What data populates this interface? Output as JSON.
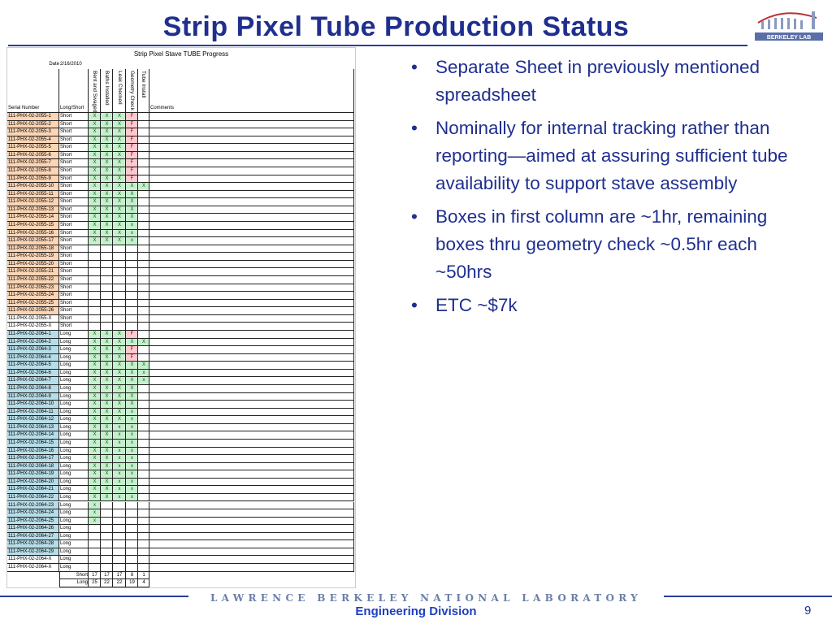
{
  "header": {
    "title": "Strip Pixel Tube Production Status",
    "logo": "BERKELEY LAB"
  },
  "sheet": {
    "title": "Strip Pixel Stave TUBE Progress",
    "date_label": "Date",
    "date": "2/16/2010",
    "columns": [
      "Serial Number",
      "Long/Short",
      "Bent and Swaged",
      "Baths Installed",
      "Leak Checked",
      "Geometry Check",
      "Tube Install",
      "Comments"
    ],
    "groups": [
      {
        "fill": "#fbd5b5",
        "rows": [
          [
            "111-PHX-02-2055-1",
            "Short",
            [
              "X",
              "X",
              "X",
              "F",
              null
            ]
          ],
          [
            "111-PHX-02-2055-2",
            "Short",
            [
              "X",
              "X",
              "X",
              "F",
              null
            ]
          ],
          [
            "111-PHX-02-2055-3",
            "Short",
            [
              "X",
              "X",
              "X",
              "F",
              null
            ]
          ],
          [
            "111-PHX-02-2055-4",
            "Short",
            [
              "X",
              "X",
              "X",
              "F",
              null
            ]
          ],
          [
            "111-PHX-02-2055-5",
            "Short",
            [
              "X",
              "X",
              "X",
              "F",
              null
            ]
          ],
          [
            "111-PHX-02-2055-6",
            "Short",
            [
              "X",
              "X",
              "X",
              "F",
              null
            ]
          ],
          [
            "111-PHX-02-2055-7",
            "Short",
            [
              "X",
              "X",
              "X",
              "F",
              null
            ]
          ],
          [
            "111-PHX-02-2055-8",
            "Short",
            [
              "X",
              "X",
              "X",
              "F",
              null
            ]
          ],
          [
            "111-PHX-02-2055-9",
            "Short",
            [
              "X",
              "X",
              "X",
              "F",
              null
            ]
          ],
          [
            "111-PHX-02-2055-10",
            "Short",
            [
              "X",
              "X",
              "X",
              "X",
              "X"
            ]
          ],
          [
            "111-PHX-02-2055-11",
            "Short",
            [
              "X",
              "X",
              "X",
              "X",
              null
            ]
          ],
          [
            "111-PHX-02-2055-12",
            "Short",
            [
              "X",
              "X",
              "X",
              "X",
              null
            ]
          ],
          [
            "111-PHX-02-2055-13",
            "Short",
            [
              "X",
              "X",
              "X",
              "X",
              null
            ]
          ],
          [
            "111-PHX-02-2055-14",
            "Short",
            [
              "X",
              "X",
              "X",
              "X",
              null
            ]
          ],
          [
            "111-PHX-02-2055-15",
            "Short",
            [
              "X",
              "X",
              "X",
              "x",
              null
            ]
          ],
          [
            "111-PHX-02-2055-16",
            "Short",
            [
              "X",
              "X",
              "X",
              "x",
              null
            ]
          ],
          [
            "111-PHX-02-2055-17",
            "Short",
            [
              "X",
              "X",
              "X",
              "x",
              null
            ]
          ],
          [
            "111-PHX-02-2055-18",
            "Short",
            [
              null,
              null,
              null,
              null,
              null
            ]
          ],
          [
            "111-PHX-02-2055-19",
            "Short",
            [
              null,
              null,
              null,
              null,
              null
            ]
          ],
          [
            "111-PHX-02-2055-20",
            "Short",
            [
              null,
              null,
              null,
              null,
              null
            ]
          ],
          [
            "111-PHX-02-2055-21",
            "Short",
            [
              null,
              null,
              null,
              null,
              null
            ]
          ],
          [
            "111-PHX-02-2055-22",
            "Short",
            [
              null,
              null,
              null,
              null,
              null
            ]
          ],
          [
            "111-PHX-02-2055-23",
            "Short",
            [
              null,
              null,
              null,
              null,
              null
            ]
          ],
          [
            "111-PHX-02-2055-24",
            "Short",
            [
              null,
              null,
              null,
              null,
              null
            ]
          ],
          [
            "111-PHX-02-2055-25",
            "Short",
            [
              null,
              null,
              null,
              null,
              null
            ]
          ],
          [
            "111-PHX-02-2055-26",
            "Short",
            [
              null,
              null,
              null,
              null,
              null
            ]
          ]
        ]
      },
      {
        "fill": null,
        "rows": [
          [
            "111-PHX-02-2055-X",
            "Short",
            [
              null,
              null,
              null,
              null,
              null
            ]
          ],
          [
            "111-PHX-02-2055-X",
            "Short",
            [
              null,
              null,
              null,
              null,
              null
            ]
          ]
        ]
      },
      {
        "fill": "#b7dde8",
        "rows": [
          [
            "111-PHX-02-2064-1",
            "Long",
            [
              "X",
              "X",
              "X",
              "F",
              null
            ]
          ],
          [
            "111-PHX-02-2064-2",
            "Long",
            [
              "X",
              "X",
              "X",
              "X",
              "X"
            ]
          ],
          [
            "111-PHX-02-2064-3",
            "Long",
            [
              "X",
              "X",
              "X",
              "F",
              null
            ]
          ],
          [
            "111-PHX-02-2064-4",
            "Long",
            [
              "X",
              "X",
              "X",
              "F",
              null
            ]
          ],
          [
            "111-PHX-02-2064-5",
            "Long",
            [
              "X",
              "X",
              "X",
              "X",
              "X"
            ]
          ],
          [
            "111-PHX-02-2064-6",
            "Long",
            [
              "X",
              "X",
              "X",
              "X",
              "x"
            ]
          ],
          [
            "111-PHX-02-2064-7",
            "Long",
            [
              "X",
              "X",
              "X",
              "X",
              "x"
            ]
          ],
          [
            "111-PHX-02-2064-8",
            "Long",
            [
              "X",
              "X",
              "X",
              "X",
              null
            ]
          ],
          [
            "111-PHX-02-2064-9",
            "Long",
            [
              "X",
              "X",
              "X",
              "X",
              null
            ]
          ],
          [
            "111-PHX-02-2064-10",
            "Long",
            [
              "X",
              "X",
              "X",
              "X",
              null
            ]
          ],
          [
            "111-PHX-02-2064-11",
            "Long",
            [
              "X",
              "X",
              "X",
              "x",
              null
            ]
          ],
          [
            "111-PHX-02-2064-12",
            "Long",
            [
              "X",
              "X",
              "X",
              "x",
              null
            ]
          ],
          [
            "111-PHX-02-2064-13",
            "Long",
            [
              "X",
              "X",
              "x",
              "x",
              null
            ]
          ],
          [
            "111-PHX-02-2064-14",
            "Long",
            [
              "X",
              "X",
              "x",
              "x",
              null
            ]
          ],
          [
            "111-PHX-02-2064-15",
            "Long",
            [
              "X",
              "X",
              "x",
              "x",
              null
            ]
          ],
          [
            "111-PHX-02-2064-16",
            "Long",
            [
              "X",
              "X",
              "x",
              "x",
              null
            ]
          ],
          [
            "111-PHX-02-2064-17",
            "Long",
            [
              "X",
              "X",
              "x",
              "x",
              null
            ]
          ],
          [
            "111-PHX-02-2064-18",
            "Long",
            [
              "X",
              "X",
              "x",
              "x",
              null
            ]
          ],
          [
            "111-PHX-02-2064-19",
            "Long",
            [
              "X",
              "X",
              "x",
              "x",
              null
            ]
          ],
          [
            "111-PHX-02-2064-20",
            "Long",
            [
              "X",
              "X",
              "x",
              "x",
              null
            ]
          ],
          [
            "111-PHX-02-2064-21",
            "Long",
            [
              "X",
              "X",
              "x",
              "x",
              null
            ]
          ],
          [
            "111-PHX-02-2064-22",
            "Long",
            [
              "X",
              "X",
              "x",
              "x",
              null
            ]
          ],
          [
            "111-PHX-02-2064-23",
            "Long",
            [
              "x",
              null,
              null,
              null,
              null
            ]
          ],
          [
            "111-PHX-02-2064-24",
            "Long",
            [
              "x",
              null,
              null,
              null,
              null
            ]
          ],
          [
            "111-PHX-02-2064-25",
            "Long",
            [
              "x",
              null,
              null,
              null,
              null
            ]
          ],
          [
            "111-PHX-02-2064-26",
            "Long",
            [
              null,
              null,
              null,
              null,
              null
            ]
          ],
          [
            "111-PHX-02-2064-27",
            "Long",
            [
              null,
              null,
              null,
              null,
              null
            ]
          ],
          [
            "111-PHX-02-2064-28",
            "Long",
            [
              null,
              null,
              null,
              null,
              null
            ]
          ],
          [
            "111-PHX-02-2064-29",
            "Long",
            [
              null,
              null,
              null,
              null,
              null
            ]
          ]
        ]
      },
      {
        "fill": null,
        "rows": [
          [
            "111-PHX-02-2064-X",
            "Long",
            [
              null,
              null,
              null,
              null,
              null
            ]
          ],
          [
            "111-PHX-02-2064-X",
            "Long",
            [
              null,
              null,
              null,
              null,
              null
            ]
          ]
        ]
      }
    ],
    "totals": [
      {
        "label": "Short",
        "values": [
          17,
          17,
          17,
          8,
          1
        ]
      },
      {
        "label": "Long",
        "values": [
          25,
          22,
          22,
          19,
          4
        ]
      }
    ],
    "x_fill": "#c6efce",
    "f_fill": "#ffc7ce"
  },
  "bullets": [
    "Separate Sheet in previously mentioned spreadsheet",
    "Nominally for internal tracking rather than reporting—aimed at assuring sufficient tube availability to support stave assembly",
    "Boxes in first column are ~1hr, remaining boxes thru geometry check ~0.5hr each ~50hrs",
    "ETC ~$7k"
  ],
  "footer": {
    "banner": "LAWRENCE BERKELEY NATIONAL LABORATORY",
    "division": "Engineering Division",
    "page": "9"
  }
}
